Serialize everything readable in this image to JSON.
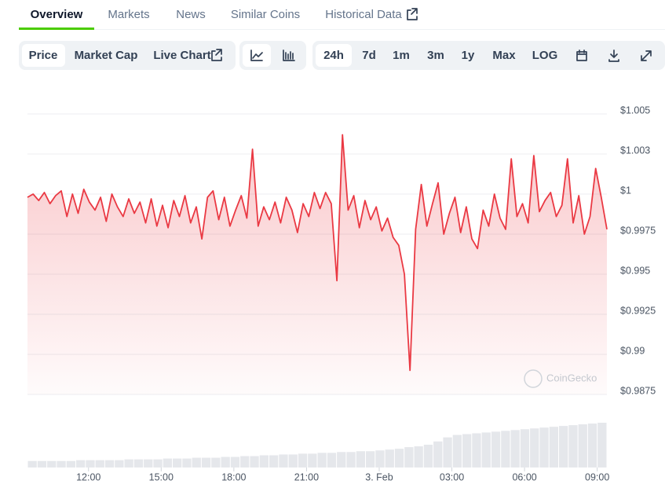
{
  "tabs": [
    "Overview",
    "Markets",
    "News",
    "Similar Coins",
    "Historical Data"
  ],
  "chart_controls": [
    "Price",
    "Market Cap",
    "Live Chart"
  ],
  "range_controls": [
    "24h",
    "7d",
    "1m",
    "3m",
    "1y",
    "Max",
    "LOG"
  ],
  "watermark": "CoinGecko",
  "chart_data": {
    "type": "line",
    "series": [
      {
        "color": "#ea3943",
        "values": [
          0.9998,
          1.0,
          0.9996,
          1.0001,
          0.9994,
          0.9999,
          1.0002,
          0.9986,
          1.0,
          0.9988,
          1.0003,
          0.9995,
          0.999,
          0.9998,
          0.9983,
          1.0,
          0.9992,
          0.9986,
          0.9997,
          0.9988,
          0.9995,
          0.9982,
          0.9997,
          0.998,
          0.9993,
          0.9979,
          0.9996,
          0.9986,
          0.9999,
          0.9982,
          0.9992,
          0.9972,
          0.9998,
          1.0002,
          0.9984,
          0.9998,
          0.998,
          0.999,
          0.9999,
          0.9985,
          1.0028,
          0.998,
          0.9992,
          0.9984,
          0.9995,
          0.9982,
          0.9998,
          0.999,
          0.9976,
          0.9994,
          0.9986,
          1.0001,
          0.9991,
          1.0001,
          0.9994,
          0.9946,
          1.0037,
          0.999,
          0.9999,
          0.9979,
          0.9996,
          0.9984,
          0.9992,
          0.9977,
          0.9985,
          0.9973,
          0.9968,
          0.995,
          0.989,
          0.9978,
          1.0006,
          0.998,
          0.9994,
          1.0007,
          0.9975,
          0.9988,
          0.9998,
          0.9976,
          0.9992,
          0.9972,
          0.9966,
          0.999,
          0.998,
          1.0,
          0.9985,
          0.9978,
          1.0022,
          0.9986,
          0.9994,
          0.9982,
          1.0024,
          0.9989,
          0.9996,
          1.0001,
          0.9986,
          0.9993,
          1.0022,
          0.9982,
          0.9999,
          0.9975,
          0.9986,
          1.0016,
          0.9998,
          0.9978
        ]
      },
      {
        "type": "bar",
        "color": "#e5e7eb",
        "values": [
          8,
          8,
          8,
          8,
          8,
          9,
          9,
          9,
          9,
          9,
          10,
          10,
          10,
          10,
          11,
          11,
          11,
          12,
          12,
          12,
          13,
          13,
          14,
          14,
          15,
          15,
          16,
          16,
          17,
          17,
          18,
          18,
          19,
          19,
          20,
          20,
          21,
          22,
          23,
          25,
          26,
          28,
          32,
          37,
          40,
          41,
          42,
          43,
          44,
          45,
          46,
          47,
          48,
          49,
          50,
          51,
          52,
          53,
          54,
          55
        ]
      }
    ],
    "ylim": [
      0.9875,
      1.005
    ],
    "yticks": [
      {
        "value": 1.005,
        "label": "$1.005"
      },
      {
        "value": 1.0025,
        "label": "$1.003"
      },
      {
        "value": 1,
        "label": "$1"
      },
      {
        "value": 0.9975,
        "label": "$0.9975"
      },
      {
        "value": 0.995,
        "label": "$0.995"
      },
      {
        "value": 0.9925,
        "label": "$0.9925"
      },
      {
        "value": 0.99,
        "label": "$0.99"
      },
      {
        "value": 0.9875,
        "label": "$0.9875"
      }
    ],
    "xlim": [
      9.48,
      33.4
    ],
    "xticks": [
      {
        "value": 12,
        "label": "12:00"
      },
      {
        "value": 15,
        "label": "15:00"
      },
      {
        "value": 18,
        "label": "18:00"
      },
      {
        "value": 21,
        "label": "21:00"
      },
      {
        "value": 24,
        "label": "3. Feb"
      },
      {
        "value": 27,
        "label": "03:00"
      },
      {
        "value": 30,
        "label": "06:00"
      },
      {
        "value": 33,
        "label": "09:00"
      }
    ],
    "grid": true
  }
}
